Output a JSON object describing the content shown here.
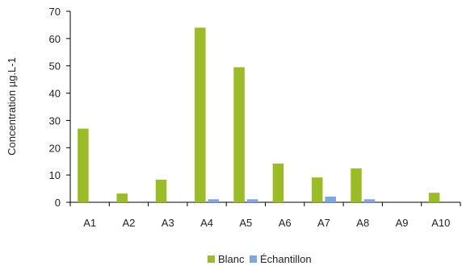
{
  "chart_data": {
    "type": "bar",
    "title": "",
    "xlabel": "",
    "ylabel": "Concentration µg.L-1",
    "categories": [
      "A1",
      "A2",
      "A3",
      "A4",
      "A5",
      "A6",
      "A7",
      "A8",
      "A9",
      "A10"
    ],
    "ylim": [
      0,
      70
    ],
    "yticks": [
      0,
      10,
      20,
      30,
      40,
      50,
      60,
      70
    ],
    "grid": false,
    "legend_position": "bottom",
    "series": [
      {
        "name": "Blanc",
        "color": "#9bbb27",
        "values": [
          27,
          3.2,
          8.3,
          64,
          49.5,
          14.2,
          9.1,
          12.4,
          0,
          3.5
        ]
      },
      {
        "name": "Échantillon",
        "color": "#7ea6e0",
        "values": [
          0,
          0,
          0,
          1.1,
          1.1,
          0,
          2.1,
          1.1,
          0,
          0
        ]
      }
    ]
  }
}
